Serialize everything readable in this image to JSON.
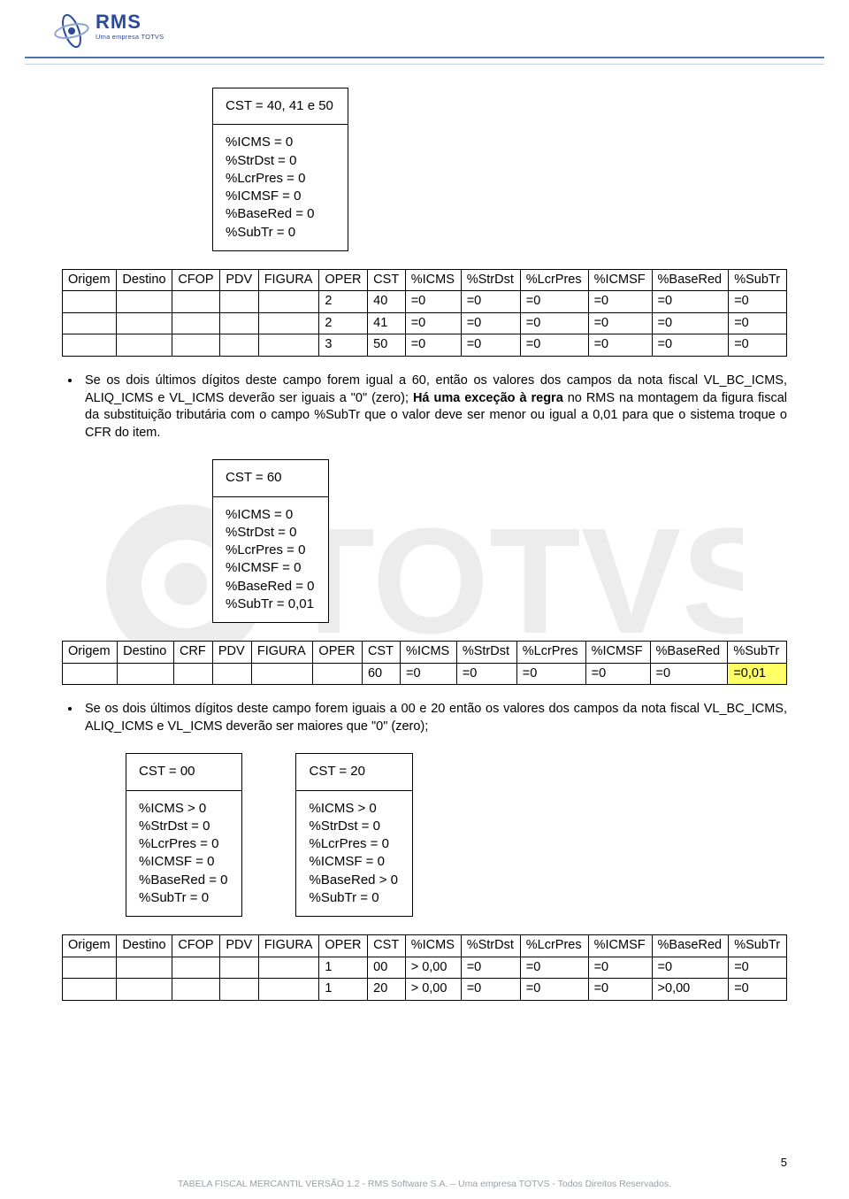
{
  "logo": {
    "big": "RMS",
    "small": "Uma empresa TOTVS"
  },
  "box1": {
    "title": "CST  =  40, 41 e 50",
    "lines": [
      "%ICMS = 0",
      "%StrDst = 0",
      "%LcrPres = 0",
      "%ICMSF = 0",
      "%BaseRed = 0",
      "%SubTr = 0"
    ]
  },
  "table1": {
    "columns": [
      "Origem",
      "Destino",
      "CFOP",
      "PDV",
      "FIGURA",
      "OPER",
      "CST",
      "%ICMS",
      "%StrDst",
      "%LcrPres",
      "%ICMSF",
      "%BaseRed",
      "%SubTr"
    ],
    "rows": [
      [
        "",
        "",
        "",
        "",
        "",
        "2",
        "40",
        "=0",
        "=0",
        "=0",
        "=0",
        "=0",
        "=0"
      ],
      [
        "",
        "",
        "",
        "",
        "",
        "2",
        "41",
        "=0",
        "=0",
        "=0",
        "=0",
        "=0",
        "=0"
      ],
      [
        "",
        "",
        "",
        "",
        "",
        "3",
        "50",
        "=0",
        "=0",
        "=0",
        "=0",
        "=0",
        "=0"
      ]
    ]
  },
  "bullet1": "Se os dois últimos dígitos deste campo forem igual a 60, então os valores dos campos da nota fiscal VL_BC_ICMS, ALIQ_ICMS e VL_ICMS deverão ser iguais a \"0\" (zero); Há uma exceção à regra no RMS na montagem da figura fiscal da substituição tributária com o campo %SubTr que o valor deve ser menor ou igual a 0,01 para que o sistema troque o CFR do item.",
  "bullet1_bold": "Há uma exceção à regra",
  "box2": {
    "title": "CST  =  60",
    "lines": [
      "%ICMS = 0",
      "%StrDst = 0",
      "%LcrPres = 0",
      "%ICMSF = 0",
      "%BaseRed = 0",
      "%SubTr = 0,01"
    ]
  },
  "table2": {
    "columns": [
      "Origem",
      "Destino",
      "CRF",
      "PDV",
      "FIGURA",
      "OPER",
      "CST",
      "%ICMS",
      "%StrDst",
      "%LcrPres",
      "%ICMSF",
      "%BaseRed",
      "%SubTr"
    ],
    "rows": [
      [
        "",
        "",
        "",
        "",
        "",
        "",
        "60",
        "=0",
        "=0",
        "=0",
        "=0",
        "=0",
        "=0,01"
      ]
    ],
    "highlight": {
      "row": 0,
      "col": 12
    }
  },
  "bullet2": "Se os dois últimos dígitos deste campo forem iguais a 00 e 20 então os valores dos campos da nota fiscal VL_BC_ICMS, ALIQ_ICMS e VL_ICMS deverão ser maiores que \"0\" (zero);",
  "box3a": {
    "title": "CST  =  00",
    "lines": [
      "%ICMS > 0",
      "%StrDst = 0",
      "%LcrPres = 0",
      "%ICMSF = 0",
      "%BaseRed = 0",
      "%SubTr = 0"
    ]
  },
  "box3b": {
    "title": "CST = 20",
    "lines": [
      "%ICMS > 0",
      "%StrDst = 0",
      "%LcrPres = 0",
      "%ICMSF = 0",
      "%BaseRed > 0",
      "%SubTr = 0"
    ]
  },
  "table3": {
    "columns": [
      "Origem",
      "Destino",
      "CFOP",
      "PDV",
      "FIGURA",
      "OPER",
      "CST",
      "%ICMS",
      "%StrDst",
      "%LcrPres",
      "%ICMSF",
      "%BaseRed",
      "%SubTr"
    ],
    "rows": [
      [
        "",
        "",
        "",
        "",
        "",
        "1",
        "00",
        "> 0,00",
        "=0",
        "=0",
        "=0",
        "=0",
        "=0"
      ],
      [
        "",
        "",
        "",
        "",
        "",
        "1",
        "20",
        "> 0,00",
        "=0",
        "=0",
        "=0",
        ">0,00",
        "=0"
      ]
    ]
  },
  "page_number": "5",
  "footer": "TABELA FISCAL MERCANTIL VERSÃO 1.2 - RMS Software S.A. – Uma empresa TOTVS - Todos Direitos Reservados."
}
